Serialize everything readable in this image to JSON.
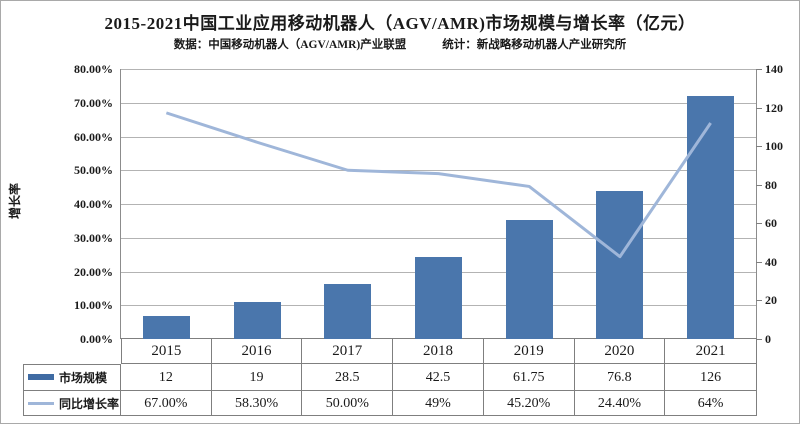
{
  "title": "2015-2021中国工业应用移动机器人（AGV/AMR)市场规模与增长率（亿元）",
  "subtitle_source": "数据：中国移动机器人（AGV/AMR)产业联盟",
  "subtitle_stat": "统计：新战略移动机器人产业研究所",
  "colors": {
    "bar": "#4a76ac",
    "bar_legend": "#3f6ba3",
    "line": "#9fb6d9",
    "gridline": "#b3b3b3",
    "border": "#7f7f7f",
    "frame": "#a9a9a9"
  },
  "chart_data": {
    "type": "bar",
    "subtype": "combo-bar-line",
    "categories": [
      "2015",
      "2016",
      "2017",
      "2018",
      "2019",
      "2020",
      "2021"
    ],
    "series": [
      {
        "name": "市场规模",
        "type": "bar",
        "axis": "right",
        "values": [
          12,
          19,
          28.5,
          42.5,
          61.75,
          76.8,
          126
        ],
        "display": [
          "12",
          "19",
          "28.5",
          "42.5",
          "61.75",
          "76.8",
          "126"
        ],
        "color": "#4a76ac"
      },
      {
        "name": "同比增长率",
        "type": "line",
        "axis": "left",
        "values": [
          67,
          58.3,
          50,
          49,
          45.2,
          24.4,
          64
        ],
        "display": [
          "67.00%",
          "58.30%",
          "50.00%",
          "49%",
          "45.20%",
          "24.40%",
          "64%"
        ],
        "color": "#9fb6d9"
      }
    ],
    "left_axis": {
      "title": "增长率",
      "min": 0,
      "max": 80,
      "step": 10,
      "tick_labels": [
        "80.00%",
        "70.00%",
        "60.00%",
        "50.00%",
        "40.00%",
        "30.00%",
        "20.00%",
        "10.00%",
        "0.00%"
      ]
    },
    "right_axis": {
      "min": 0,
      "max": 140,
      "step": 20,
      "tick_labels": [
        "140",
        "120",
        "100",
        "80",
        "60",
        "40",
        "20",
        "0"
      ]
    },
    "grid": "horizontal",
    "legend_position": "table-left"
  }
}
